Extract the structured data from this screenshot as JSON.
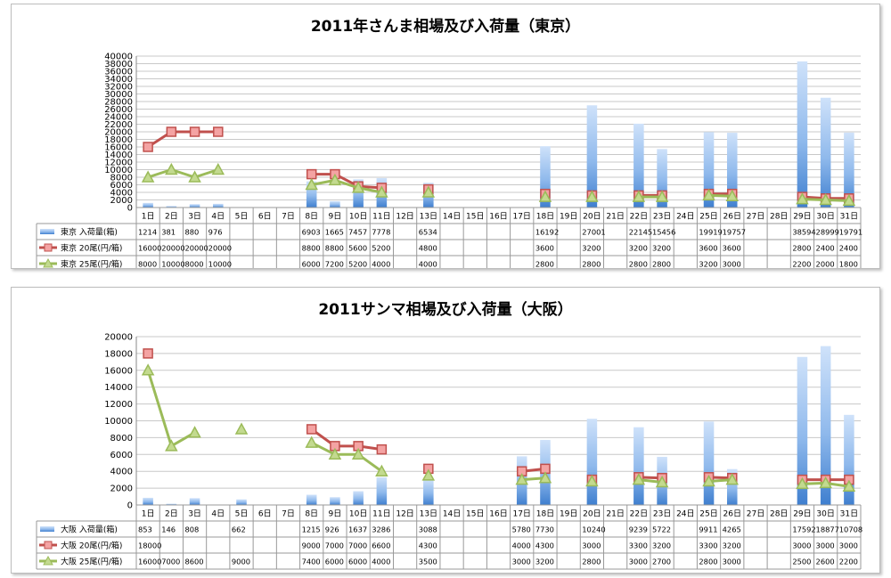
{
  "chart_data": [
    {
      "type": "bar",
      "title": "2011年さんま相場及び入荷量（東京）",
      "categories": [
        "1日",
        "2日",
        "3日",
        "4日",
        "5日",
        "6日",
        "7日",
        "8日",
        "9日",
        "10日",
        "11日",
        "12日",
        "13日",
        "14日",
        "15日",
        "16日",
        "17日",
        "18日",
        "19日",
        "20日",
        "21日",
        "22日",
        "23日",
        "24日",
        "25日",
        "26日",
        "27日",
        "28日",
        "29日",
        "30日",
        "31日"
      ],
      "ylim": [
        0,
        40000
      ],
      "yticks": [
        0,
        2000,
        4000,
        6000,
        8000,
        10000,
        12000,
        14000,
        16000,
        18000,
        20000,
        22000,
        24000,
        26000,
        28000,
        30000,
        32000,
        34000,
        36000,
        38000,
        40000
      ],
      "grid": true,
      "series": [
        {
          "name": "東京 入荷量(箱)",
          "kind": "bar",
          "marker": "bar",
          "color": "#4f8fd6",
          "values": [
            1214,
            381,
            880,
            976,
            null,
            null,
            null,
            6903,
            1665,
            7457,
            7778,
            null,
            6534,
            null,
            null,
            null,
            null,
            16192,
            null,
            27001,
            null,
            22145,
            15456,
            null,
            19919,
            19757,
            null,
            null,
            38594,
            28999,
            19791
          ]
        },
        {
          "name": "東京 20尾(円/箱)",
          "kind": "line",
          "marker": "square",
          "color": "#c0504d",
          "values": [
            16000,
            20000,
            20000,
            20000,
            null,
            null,
            null,
            8800,
            8800,
            5600,
            5200,
            null,
            4800,
            null,
            null,
            null,
            null,
            3600,
            null,
            3200,
            null,
            3200,
            3200,
            null,
            3600,
            3600,
            null,
            null,
            2800,
            2400,
            2400
          ]
        },
        {
          "name": "東京 25尾(円/箱)",
          "kind": "line",
          "marker": "triangle",
          "color": "#9bbb59",
          "values": [
            8000,
            10000,
            8000,
            10000,
            null,
            null,
            null,
            6000,
            7200,
            5200,
            4000,
            null,
            4000,
            null,
            null,
            null,
            null,
            2800,
            null,
            2800,
            null,
            2800,
            2800,
            null,
            3200,
            3000,
            null,
            null,
            2200,
            2000,
            1800
          ]
        }
      ]
    },
    {
      "type": "bar",
      "title": "2011サンマ相場及び入荷量（大阪）",
      "categories": [
        "1日",
        "2日",
        "3日",
        "4日",
        "5日",
        "6日",
        "7日",
        "8日",
        "9日",
        "10日",
        "11日",
        "12日",
        "13日",
        "14日",
        "15日",
        "16日",
        "17日",
        "18日",
        "19日",
        "20日",
        "21日",
        "22日",
        "23日",
        "24日",
        "25日",
        "26日",
        "27日",
        "28日",
        "29日",
        "30日",
        "31日"
      ],
      "ylim": [
        0,
        20000
      ],
      "yticks": [
        0,
        2000,
        4000,
        6000,
        8000,
        10000,
        12000,
        14000,
        16000,
        18000,
        20000
      ],
      "grid": true,
      "series": [
        {
          "name": "大阪 入荷量(箱)",
          "kind": "bar",
          "marker": "bar",
          "color": "#4f8fd6",
          "values": [
            853,
            146,
            808,
            null,
            662,
            null,
            null,
            1215,
            926,
            1637,
            3286,
            null,
            3088,
            null,
            null,
            null,
            5780,
            7730,
            null,
            10240,
            null,
            9239,
            5722,
            null,
            9911,
            4265,
            null,
            null,
            17592,
            18877,
            10708
          ]
        },
        {
          "name": "大阪 20尾(円/箱)",
          "kind": "line",
          "marker": "square",
          "color": "#c0504d",
          "values": [
            18000,
            null,
            null,
            null,
            null,
            null,
            null,
            9000,
            7000,
            7000,
            6600,
            null,
            4300,
            null,
            null,
            null,
            4000,
            4300,
            null,
            3000,
            null,
            3300,
            3200,
            null,
            3300,
            3200,
            null,
            null,
            3000,
            3000,
            3000
          ]
        },
        {
          "name": "大阪 25尾(円/箱)",
          "kind": "line",
          "marker": "triangle",
          "color": "#9bbb59",
          "values": [
            16000,
            7000,
            8600,
            null,
            9000,
            null,
            null,
            7400,
            6000,
            6000,
            4000,
            null,
            3500,
            null,
            null,
            null,
            3000,
            3200,
            null,
            2800,
            null,
            3000,
            2700,
            null,
            2800,
            3000,
            null,
            null,
            2500,
            2600,
            2200
          ]
        }
      ]
    }
  ]
}
